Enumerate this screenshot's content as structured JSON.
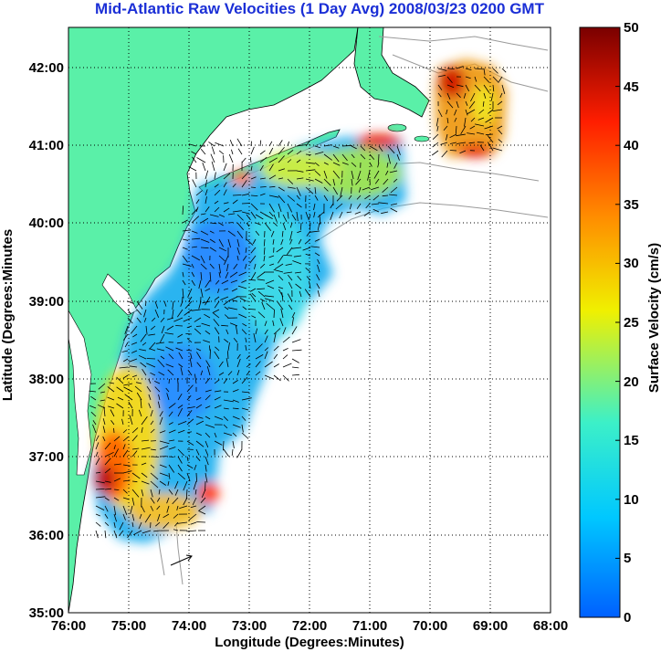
{
  "title": "Mid-Atlantic Raw Velocities (1 Day Avg) 2008/03/23 0200 GMT",
  "map": {
    "xlabel": "Longitude (Degrees:Minutes)",
    "ylabel": "Latitude (Degrees:Minutes",
    "x_ticks": [
      "76:00",
      "75:00",
      "74:00",
      "73:00",
      "72:00",
      "71:00",
      "70:00",
      "69:00",
      "68:00"
    ],
    "y_ticks": [
      "42:00",
      "41:00",
      "40:00",
      "39:00",
      "38:00",
      "37:00",
      "36:00",
      "35:00"
    ],
    "lon_range": [
      -76,
      -68
    ],
    "lat_range": [
      35,
      42.5
    ],
    "grid": "dotted",
    "land_color": "#5af0a8",
    "contour_color": "#9a9a9a"
  },
  "colorbar": {
    "label": "Surface Velocity (cm/s)",
    "ticks": [
      "0",
      "5",
      "10",
      "15",
      "20",
      "25",
      "30",
      "35",
      "40",
      "45",
      "50"
    ],
    "range": [
      0,
      50
    ],
    "colors": [
      "#0060ff",
      "#00c8ff",
      "#3cf0c8",
      "#f0f000",
      "#ff8c00",
      "#ff1e00",
      "#7a0000"
    ]
  }
}
